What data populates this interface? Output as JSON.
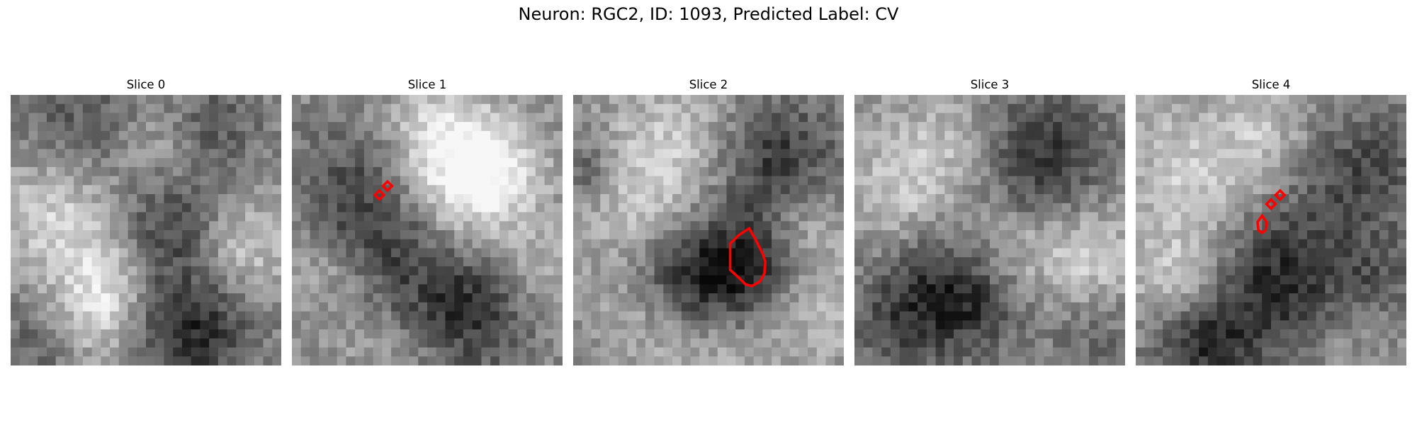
{
  "figure": {
    "title": "Neuron: RGC2, ID: 1093, Predicted Label: CV"
  },
  "panels": [
    {
      "title": "Slice 0"
    },
    {
      "title": "Slice 1"
    },
    {
      "title": "Slice 2"
    },
    {
      "title": "Slice 3"
    },
    {
      "title": "Slice 4"
    }
  ],
  "colors": {
    "contour": "#ff0000",
    "colormap": "gray"
  }
}
